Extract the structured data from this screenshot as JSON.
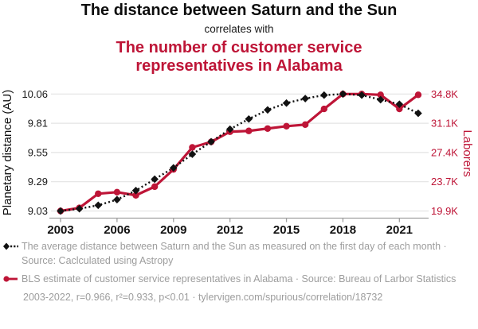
{
  "header": {
    "title_top": "The distance between Saturn and the Sun",
    "connector": "correlates with",
    "title_bottom": "The number of customer service representatives in Alabama"
  },
  "colors": {
    "accent_red": "#be1537",
    "series_black": "#111111",
    "legend_text": "#9d9d9d",
    "gridline": "#e3e3e3",
    "axis_line": "#9f9f9f",
    "tick_label_black": "#1a1a1a"
  },
  "chart_data": {
    "type": "line",
    "x": [
      2003,
      2004,
      2005,
      2006,
      2007,
      2008,
      2009,
      2010,
      2011,
      2012,
      2013,
      2014,
      2015,
      2016,
      2017,
      2018,
      2019,
      2020,
      2021,
      2022
    ],
    "x_ticks": [
      "2003",
      "2006",
      "2009",
      "2012",
      "2015",
      "2018",
      "2021"
    ],
    "series": [
      {
        "name": "Average distance between Saturn and the Sun (AU)",
        "axis": "left",
        "marker": "diamond",
        "line_style": "dotted",
        "values": [
          9.03,
          9.05,
          9.08,
          9.13,
          9.21,
          9.31,
          9.41,
          9.53,
          9.64,
          9.75,
          9.84,
          9.92,
          9.98,
          10.02,
          10.05,
          10.06,
          10.05,
          10.01,
          9.97,
          9.89
        ]
      },
      {
        "name": "BLS estimate of customer service representatives in Alabama (thousands)",
        "axis": "right",
        "marker": "circle",
        "line_style": "solid",
        "values": [
          19.9,
          20.3,
          22.1,
          22.3,
          21.9,
          23.0,
          25.2,
          28.0,
          28.7,
          30.0,
          30.1,
          30.4,
          30.7,
          30.9,
          32.9,
          34.8,
          34.8,
          34.7,
          32.9,
          34.7
        ]
      }
    ],
    "left_axis": {
      "label": "Planetary distance (AU)",
      "ticks": [
        "9.03",
        "9.29",
        "9.55",
        "9.81",
        "10.06"
      ],
      "min": 9.03,
      "max": 10.06
    },
    "right_axis": {
      "label": "Laborers",
      "ticks": [
        "19.9K",
        "23.7K",
        "27.4K",
        "31.1K",
        "34.8K"
      ],
      "min": 19.9,
      "max": 34.8
    },
    "grid": "horizontal",
    "legend_position": "bottom"
  },
  "legend": {
    "series1": "The average distance between Saturn and the Sun as measured on the first day of each month · Source: Caclculated using Astropy",
    "series2": "BLS estimate of customer service representatives in Alabama · Source: Bureau of Larbor Statistics",
    "footer": "2003-2022, r=0.966, r²=0.933, p<0.01 · tylervigen.com/spurious/correlation/18732"
  }
}
